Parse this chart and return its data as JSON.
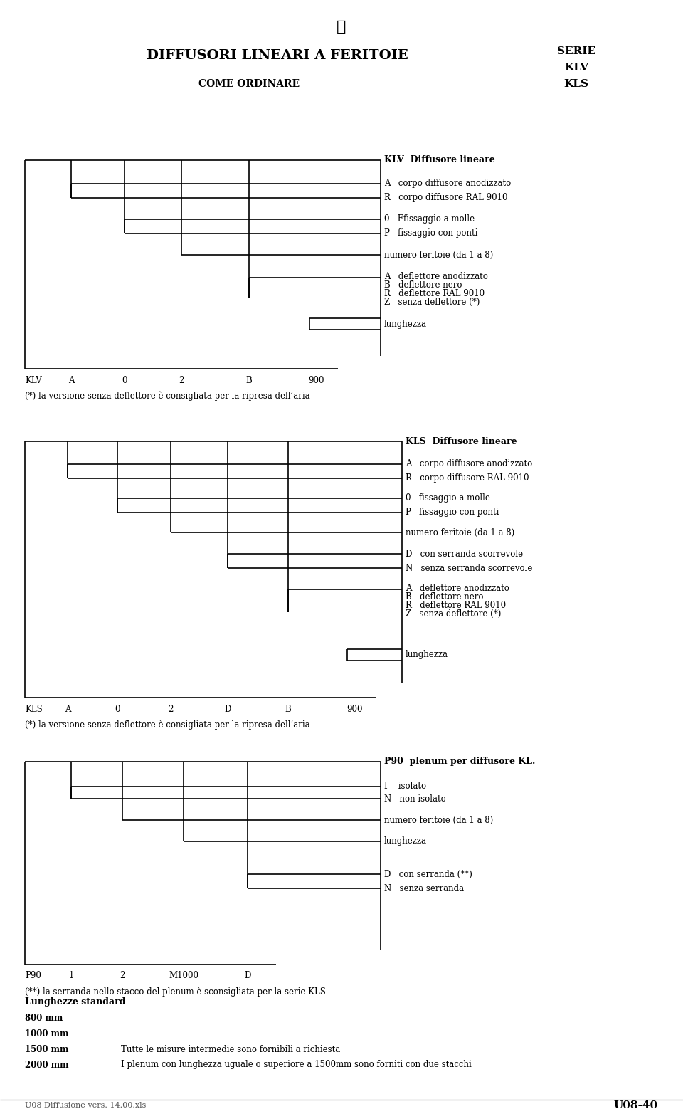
{
  "title": "DIFFUSORI LINEARI A FERITOIE",
  "subtitle": "COME ORDINARE",
  "serie_title": "SERIE",
  "serie_lines": [
    "KLV",
    "KLS"
  ],
  "bg_color": "#ffffff",
  "line_color": "#000000",
  "text_color": "#000000",
  "footer_left": "U08 Diffusione-vers. 14.00.xls",
  "footer_right": "U08-40",
  "std_lengths_title": "Lunghezze standard",
  "std_lengths": [
    [
      "800 mm",
      ""
    ],
    [
      "1000 mm",
      ""
    ],
    [
      "1500 mm",
      "Tutte le misure intermedie sono fornibili a richiesta"
    ],
    [
      "2000 mm",
      "I plenum con lunghezza uguale o superiore a 1500mm sono forniti con due stacchi"
    ]
  ],
  "klv_footnote": "(*) la versione senza deflettore è consigliata per la ripresa dell’aria",
  "kls_footnote": "(*) la versione senza deflettore è consigliata per la ripresa dell’aria",
  "p90_footnote": "(**) la serranda nello stacco del plenum è sconsigliata per la serie KLS"
}
